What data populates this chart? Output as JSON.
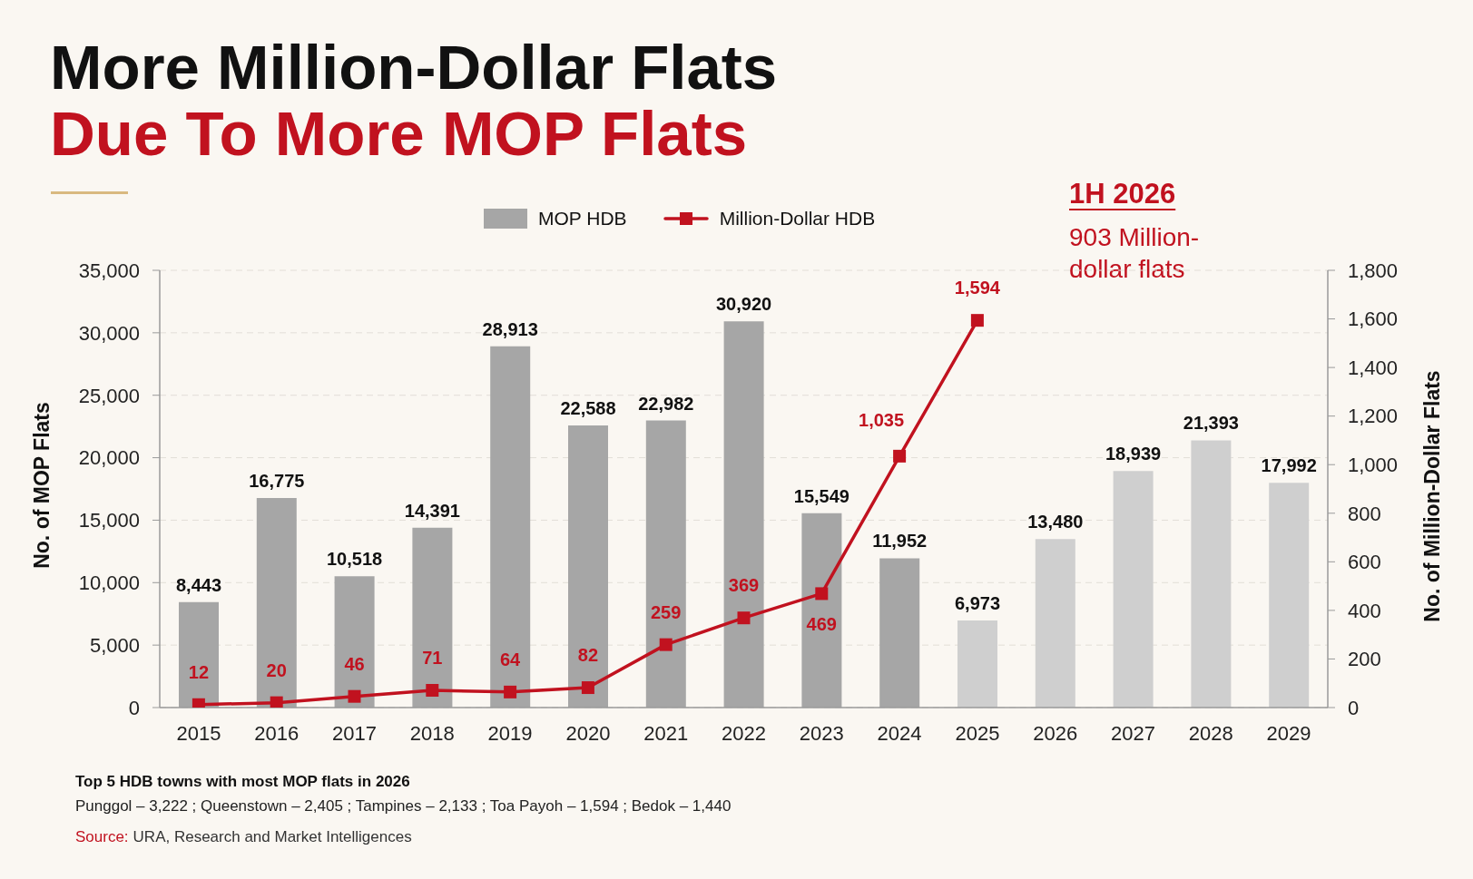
{
  "chart_data": {
    "type": "bar",
    "title": "More Million-Dollar Flats",
    "subtitle": "Due To More MOP Flats",
    "ylabel": "No. of MOP Flats",
    "y2label": "No. of Million-Dollar Flats",
    "categories": [
      "2015",
      "2016",
      "2017",
      "2018",
      "2019",
      "2020",
      "2021",
      "2022",
      "2023",
      "2024",
      "2025",
      "2026",
      "2027",
      "2028",
      "2029"
    ],
    "series": [
      {
        "name": "MOP HDB",
        "color": "#a6a6a6",
        "colors": [
          "#a6a6a6",
          "#a6a6a6",
          "#a6a6a6",
          "#a6a6a6",
          "#a6a6a6",
          "#a6a6a6",
          "#a6a6a6",
          "#a6a6a6",
          "#a6a6a6",
          "#a6a6a6",
          "#cfcfcf",
          "#cfcfcf",
          "#cfcfcf",
          "#cfcfcf",
          "#cfcfcf"
        ],
        "values": [
          8443,
          16775,
          10518,
          14391,
          28913,
          22588,
          22982,
          30920,
          15549,
          11952,
          6973,
          13480,
          18939,
          21393,
          17992
        ],
        "value_labels": [
          "8,443",
          "16,775",
          "10,518",
          "14,391",
          "28,913",
          "22,588",
          "22,982",
          "30,920",
          "15,549",
          "11,952",
          "6,973",
          "13,480",
          "18,939",
          "21,393",
          "17,992"
        ]
      },
      {
        "name": "Million-Dollar HDB",
        "type": "line",
        "axis": "y2",
        "color": "#c1121f",
        "values": [
          12,
          20,
          46,
          71,
          64,
          82,
          259,
          369,
          469,
          1035,
          1594,
          null,
          null,
          null,
          null
        ],
        "value_labels": [
          "12",
          "20",
          "46",
          "71",
          "64",
          "82",
          "259",
          "369",
          "469",
          "1,035",
          "1,594",
          null,
          null,
          null,
          null
        ]
      }
    ],
    "ylim": [
      0,
      35000
    ],
    "yticks": [
      0,
      {
        "value": 5000,
        "label": "5,000"
      },
      {
        "value": 10000,
        "label": "10,000"
      },
      {
        "value": 15000,
        "label": "15,000"
      },
      {
        "value": 20000,
        "label": "20,000"
      },
      {
        "value": 25000,
        "label": "25,000"
      },
      {
        "value": 30000,
        "label": "30,000"
      },
      {
        "value": 35000,
        "label": "35,000"
      }
    ],
    "y2lim": [
      0,
      1800
    ],
    "y2ticks": [
      0,
      200,
      400,
      600,
      800,
      {
        "value": 1000,
        "label": "1,000"
      },
      {
        "value": 1200,
        "label": "1,200"
      },
      {
        "value": 1400,
        "label": "1,400"
      },
      {
        "value": 1600,
        "label": "1,600"
      },
      {
        "value": 1800,
        "label": "1,800"
      }
    ],
    "grid": "y",
    "legend": "top",
    "marker": "square",
    "annotations": [
      "1H 2026",
      "903 Million-dollar flats",
      "Top 5 HDB towns with most MOP flats in 2026",
      "Punggol – 3,222 ; Queenstown – 2,405 ; Tampines – 2,133 ; Toa Payoh – 1,594 ; Bedok – 1,440",
      "Source:",
      "URA, Research and Market Intelligences"
    ]
  }
}
